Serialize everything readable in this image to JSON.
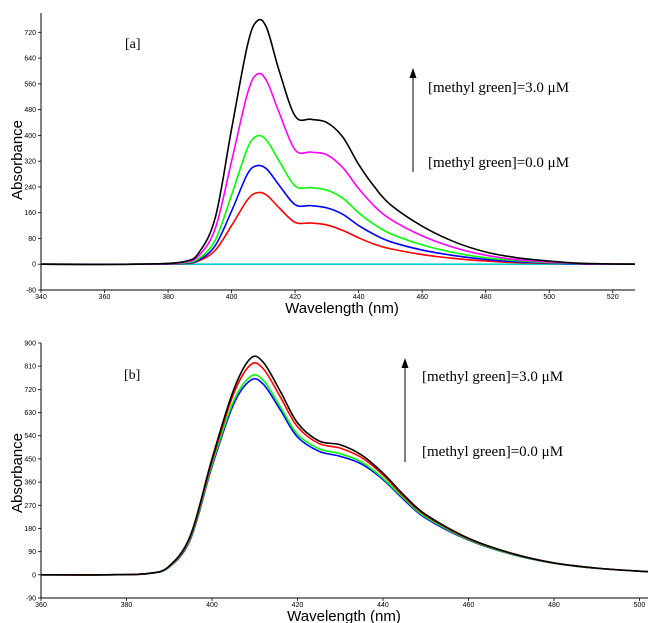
{
  "chart_data": [
    {
      "type": "line",
      "panel_label": "[a]",
      "xlabel": "Wavelength (nm)",
      "ylabel": "Absorbance",
      "xlim": [
        340,
        527
      ],
      "ylim": [
        -80,
        780
      ],
      "xticks": [
        340,
        360,
        380,
        400,
        420,
        440,
        460,
        480,
        500,
        520
      ],
      "yticks": [
        -80,
        0,
        80,
        160,
        240,
        320,
        400,
        480,
        560,
        640,
        720
      ],
      "annotations": {
        "top": "[methyl green]=3.0 μM",
        "bottom": "[methyl green]=0.0 μM",
        "arrow_direction": "up"
      },
      "series": [
        {
          "color": "#00cccc",
          "x": [
            340,
            400,
            420,
            440,
            460,
            480,
            500,
            527
          ],
          "y": [
            0,
            0,
            0,
            0,
            0,
            0,
            0,
            0
          ]
        },
        {
          "color": "#ff0000",
          "x": [
            340,
            370,
            385,
            390,
            395,
            400,
            405,
            408,
            411,
            415,
            420,
            425,
            430,
            435,
            440,
            445,
            450,
            460,
            470,
            480,
            490,
            500,
            510,
            527
          ],
          "y": [
            0,
            0,
            2,
            12,
            45,
            120,
            200,
            222,
            215,
            175,
            130,
            128,
            122,
            105,
            82,
            62,
            48,
            30,
            18,
            10,
            5,
            3,
            1,
            0
          ]
        },
        {
          "color": "#0000ff",
          "x": [
            340,
            370,
            385,
            390,
            395,
            400,
            405,
            408,
            411,
            415,
            420,
            425,
            430,
            435,
            440,
            445,
            450,
            460,
            470,
            480,
            490,
            500,
            510,
            527
          ],
          "y": [
            0,
            0,
            3,
            15,
            60,
            165,
            280,
            306,
            296,
            245,
            185,
            182,
            175,
            155,
            120,
            92,
            70,
            44,
            27,
            15,
            8,
            4,
            1,
            0
          ]
        },
        {
          "color": "#00ff00",
          "x": [
            340,
            370,
            385,
            390,
            395,
            400,
            405,
            408,
            411,
            415,
            420,
            425,
            430,
            435,
            440,
            445,
            450,
            460,
            470,
            480,
            490,
            500,
            510,
            527
          ],
          "y": [
            0,
            0,
            4,
            20,
            78,
            215,
            360,
            398,
            385,
            320,
            243,
            238,
            230,
            205,
            160,
            123,
            95,
            60,
            36,
            20,
            11,
            5,
            2,
            0
          ]
        },
        {
          "color": "#ff00ff",
          "x": [
            340,
            370,
            385,
            390,
            395,
            400,
            405,
            408,
            411,
            415,
            420,
            425,
            430,
            435,
            440,
            445,
            450,
            460,
            470,
            480,
            490,
            500,
            510,
            527
          ],
          "y": [
            0,
            0,
            6,
            30,
            115,
            320,
            530,
            590,
            570,
            470,
            355,
            348,
            340,
            300,
            235,
            180,
            140,
            88,
            52,
            28,
            14,
            7,
            2,
            0
          ]
        },
        {
          "color": "#000000",
          "x": [
            340,
            370,
            385,
            390,
            395,
            400,
            405,
            408,
            411,
            415,
            420,
            425,
            430,
            435,
            440,
            445,
            450,
            460,
            470,
            480,
            490,
            500,
            510,
            527
          ],
          "y": [
            0,
            0,
            8,
            40,
            150,
            420,
            680,
            755,
            735,
            600,
            460,
            450,
            440,
            395,
            310,
            240,
            185,
            118,
            70,
            38,
            20,
            10,
            3,
            0
          ]
        }
      ]
    },
    {
      "type": "line",
      "panel_label": "[b]",
      "xlabel": "Wavelength (nm)",
      "ylabel": "Absorbance",
      "xlim": [
        360,
        502
      ],
      "ylim": [
        -90,
        900
      ],
      "xticks": [
        360,
        380,
        400,
        420,
        440,
        460,
        480,
        500
      ],
      "yticks": [
        -90,
        0,
        90,
        180,
        270,
        360,
        450,
        540,
        630,
        720,
        810,
        900
      ],
      "annotations": {
        "top": "[methyl green]=3.0 μM",
        "bottom": "[methyl green]=0.0 μM",
        "arrow_direction": "up"
      },
      "series": [
        {
          "color": "#0000ff",
          "x": [
            360,
            375,
            385,
            390,
            395,
            400,
            405,
            409,
            412,
            416,
            420,
            425,
            430,
            435,
            440,
            445,
            450,
            460,
            470,
            480,
            490,
            502
          ],
          "y": [
            0,
            0,
            5,
            30,
            140,
            420,
            660,
            755,
            740,
            640,
            535,
            480,
            460,
            430,
            370,
            290,
            220,
            135,
            80,
            45,
            25,
            12
          ]
        },
        {
          "color": "#00ff00",
          "x": [
            360,
            375,
            385,
            390,
            395,
            400,
            405,
            409,
            412,
            416,
            420,
            425,
            430,
            435,
            440,
            445,
            450,
            460,
            470,
            480,
            490,
            502
          ],
          "y": [
            0,
            0,
            5,
            31,
            145,
            428,
            672,
            770,
            755,
            652,
            545,
            490,
            470,
            438,
            375,
            295,
            224,
            137,
            81,
            45,
            25,
            12
          ]
        },
        {
          "color": "#ff0000",
          "x": [
            360,
            375,
            385,
            390,
            395,
            400,
            405,
            409,
            412,
            416,
            420,
            425,
            430,
            435,
            440,
            445,
            450,
            460,
            470,
            480,
            490,
            502
          ],
          "y": [
            0,
            0,
            5,
            33,
            150,
            440,
            700,
            815,
            800,
            690,
            575,
            510,
            492,
            455,
            388,
            302,
            230,
            140,
            83,
            46,
            26,
            12
          ]
        },
        {
          "color": "#000000",
          "x": [
            360,
            375,
            385,
            390,
            395,
            400,
            405,
            409,
            412,
            416,
            420,
            425,
            430,
            435,
            440,
            445,
            450,
            460,
            470,
            480,
            490,
            502
          ],
          "y": [
            0,
            0,
            5,
            34,
            155,
            450,
            715,
            840,
            825,
            712,
            590,
            520,
            505,
            465,
            395,
            308,
            234,
            142,
            84,
            46,
            26,
            12
          ]
        }
      ]
    }
  ]
}
